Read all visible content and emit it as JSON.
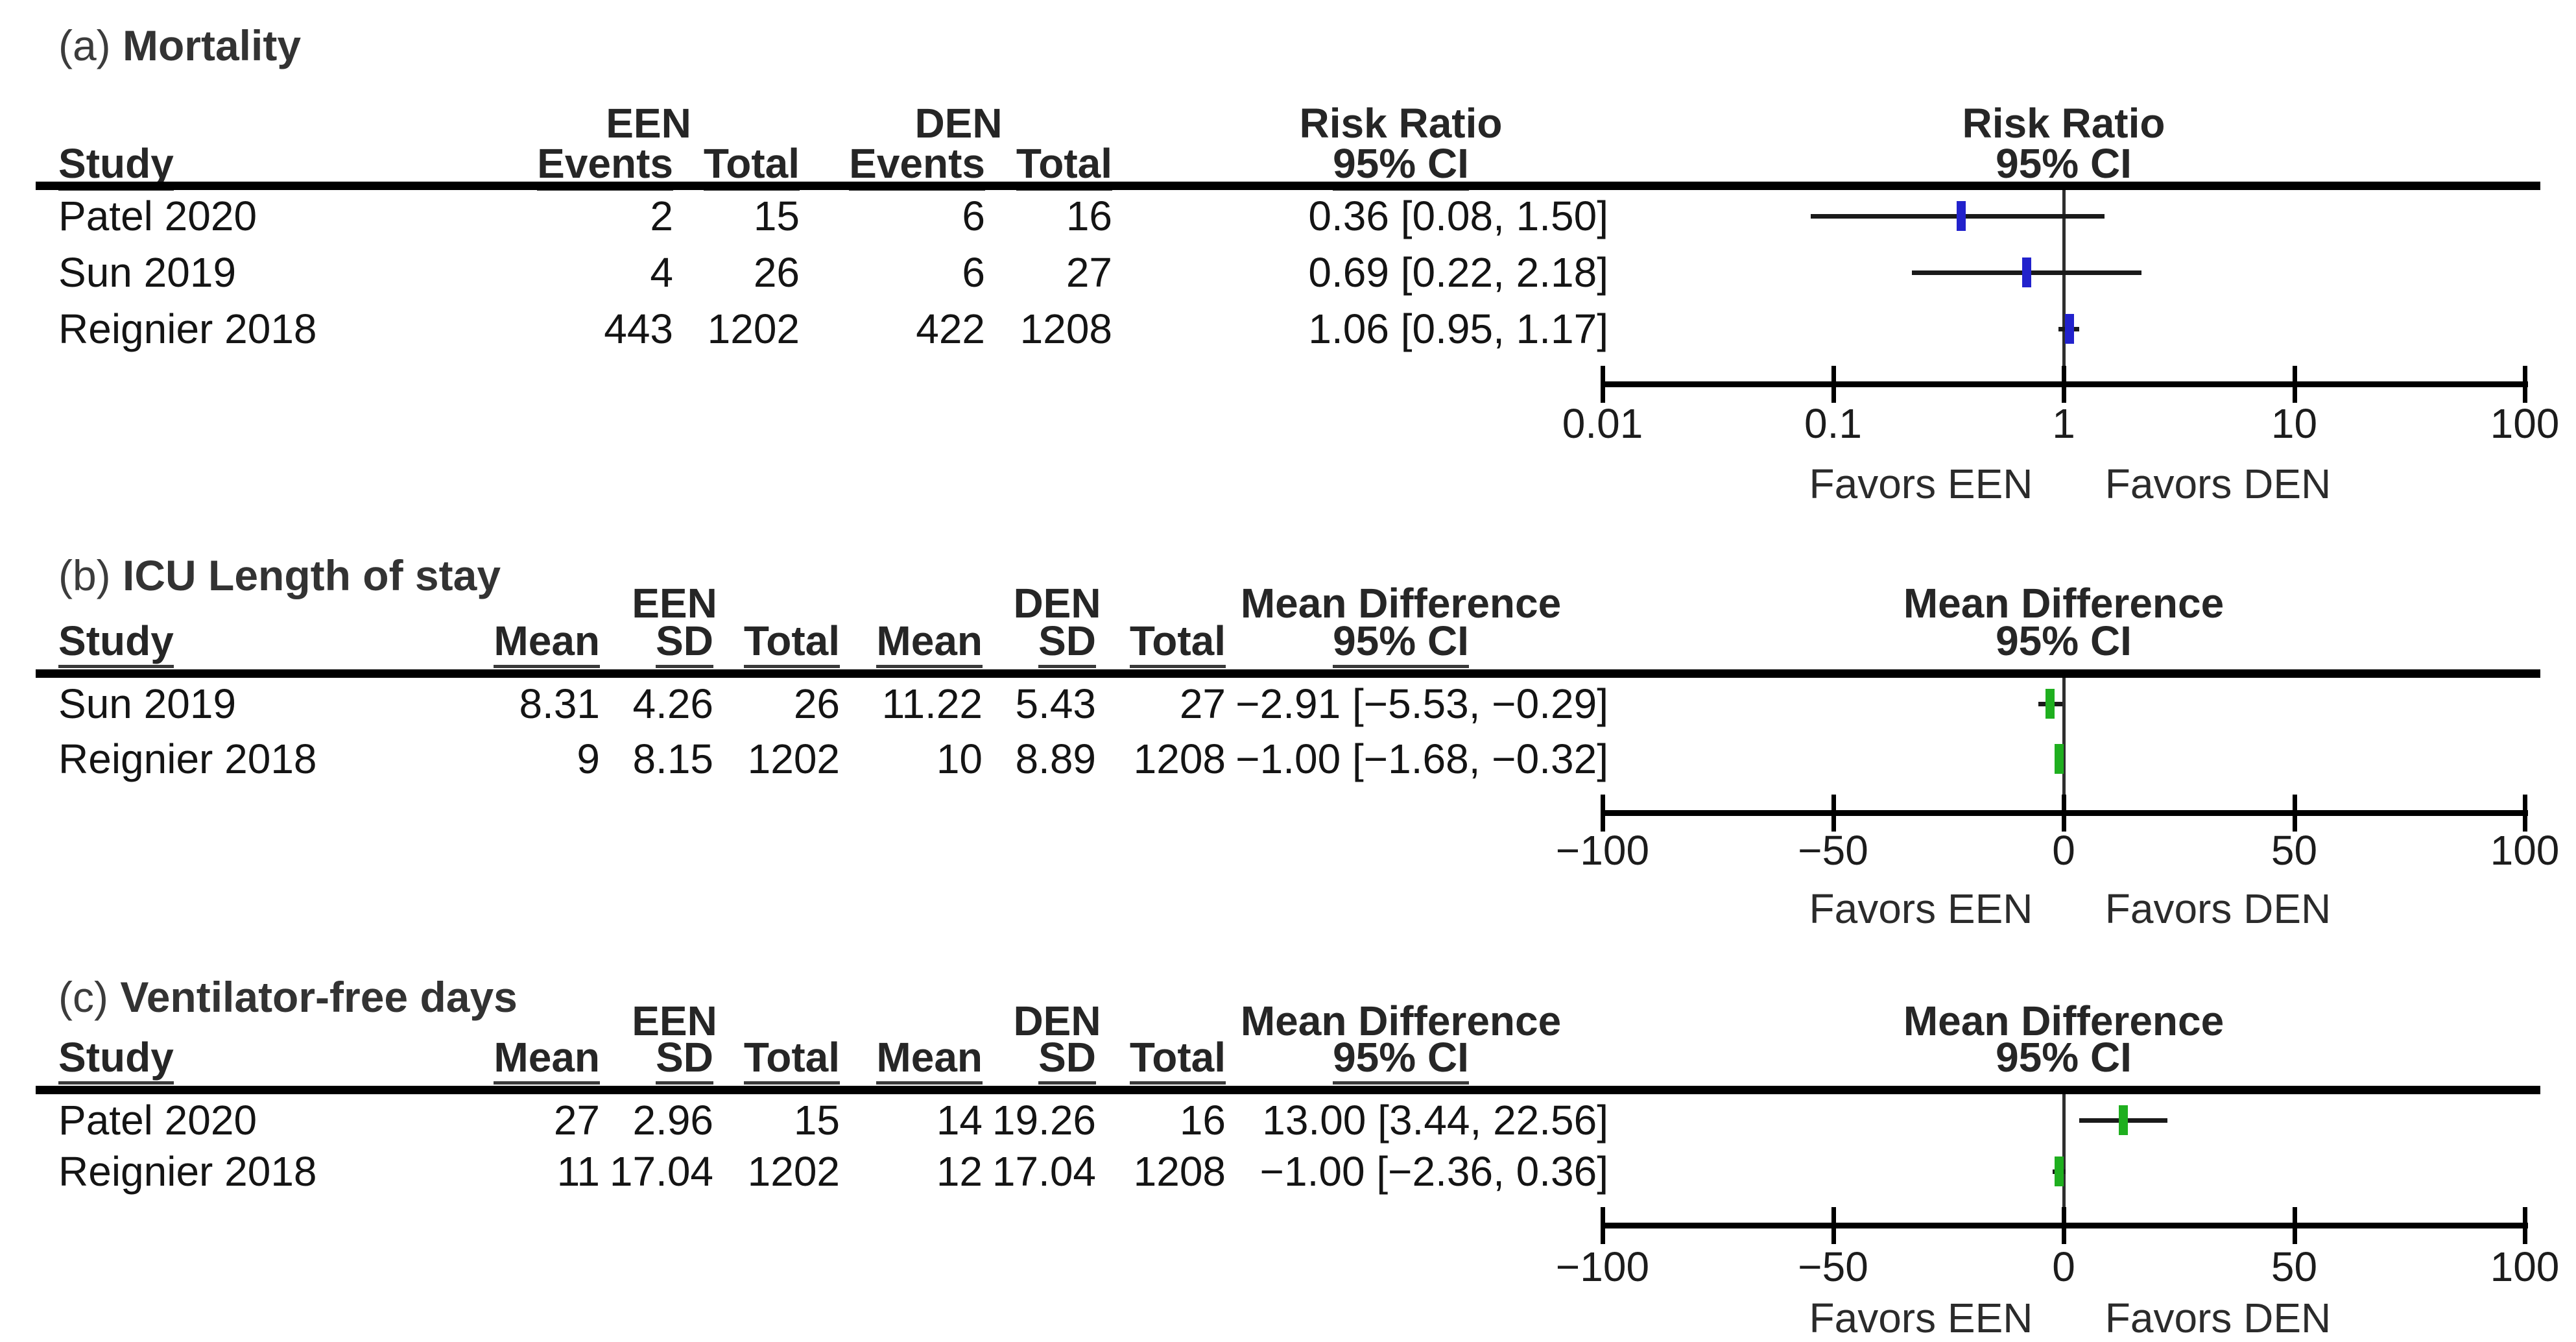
{
  "figure": {
    "sections": [
      {
        "tag": "(a)",
        "title": "Mortality",
        "study_header": "Study",
        "group1": "EEN",
        "group2": "DEN",
        "group_cols": [
          "Events",
          "Total"
        ],
        "effect_label": "Risk Ratio",
        "ci_label": "95% CI",
        "marker_color": "#2222CC",
        "axis": {
          "scale": "log",
          "ticks": [
            "0.01",
            "0.1",
            "1",
            "10",
            "100"
          ],
          "tick_values": [
            0.01,
            0.1,
            1,
            10,
            100
          ],
          "favors_left": "Favors EEN",
          "favors_right": "Favors DEN"
        },
        "rows": [
          {
            "study": "Patel 2020",
            "g1": [
              "2",
              "15"
            ],
            "g2": [
              "6",
              "16"
            ],
            "ci_text": "0.36 [0.08, 1.50]",
            "est": 0.36,
            "lo": 0.08,
            "hi": 1.5
          },
          {
            "study": "Sun 2019",
            "g1": [
              "4",
              "26"
            ],
            "g2": [
              "6",
              "27"
            ],
            "ci_text": "0.69 [0.22, 2.18]",
            "est": 0.69,
            "lo": 0.22,
            "hi": 2.18
          },
          {
            "study": "Reignier 2018",
            "g1": [
              "443",
              "1202"
            ],
            "g2": [
              "422",
              "1208"
            ],
            "ci_text": "1.06 [0.95, 1.17]",
            "est": 1.06,
            "lo": 0.95,
            "hi": 1.17
          }
        ]
      },
      {
        "tag": "(b)",
        "title": "ICU Length of stay",
        "study_header": "Study",
        "group1": "EEN",
        "group2": "DEN",
        "group_cols": [
          "Mean",
          "SD",
          "Total"
        ],
        "effect_label": "Mean Difference",
        "ci_label": "95% CI",
        "marker_color": "#1FAF1F",
        "axis": {
          "scale": "linear",
          "ticks": [
            "−100",
            "−50",
            "0",
            "50",
            "100"
          ],
          "tick_values": [
            -100,
            -50,
            0,
            50,
            100
          ],
          "favors_left": "Favors EEN",
          "favors_right": "Favors DEN"
        },
        "rows": [
          {
            "study": "Sun 2019",
            "g1": [
              "8.31",
              "4.26",
              "26"
            ],
            "g2": [
              "11.22",
              "5.43",
              "27"
            ],
            "ci_text": "−2.91 [−5.53, −0.29]",
            "est": -2.91,
            "lo": -5.53,
            "hi": -0.29
          },
          {
            "study": "Reignier 2018",
            "g1": [
              "9",
              "8.15",
              "1202"
            ],
            "g2": [
              "10",
              "8.89",
              "1208"
            ],
            "ci_text": "−1.00 [−1.68, −0.32]",
            "est": -1.0,
            "lo": -1.68,
            "hi": -0.32
          }
        ]
      },
      {
        "tag": "(c)",
        "title": "Ventilator-free days",
        "study_header": "Study",
        "group1": "EEN",
        "group2": "DEN",
        "group_cols": [
          "Mean",
          "SD",
          "Total"
        ],
        "effect_label": "Mean Difference",
        "ci_label": "95% CI",
        "marker_color": "#1FAF1F",
        "axis": {
          "scale": "linear",
          "ticks": [
            "−100",
            "−50",
            "0",
            "50",
            "100"
          ],
          "tick_values": [
            -100,
            -50,
            0,
            50,
            100
          ],
          "favors_left": "Favors EEN",
          "favors_right": "Favors DEN"
        },
        "rows": [
          {
            "study": "Patel 2020",
            "g1": [
              "27",
              "2.96",
              "15"
            ],
            "g2": [
              "14",
              "19.26",
              "16"
            ],
            "ci_text": "13.00 [3.44, 22.56]",
            "est": 13.0,
            "lo": 3.44,
            "hi": 22.56
          },
          {
            "study": "Reignier 2018",
            "g1": [
              "11",
              "17.04",
              "1202"
            ],
            "g2": [
              "12",
              "17.04",
              "1208"
            ],
            "ci_text": "−1.00 [−2.36, 0.36]",
            "est": -1.0,
            "lo": -2.36,
            "hi": 0.36
          }
        ]
      }
    ]
  },
  "chart_data": [
    {
      "type": "forest",
      "panel": "(a)",
      "title": "Mortality",
      "effect_measure": "Risk Ratio",
      "ci_level": "95% CI",
      "x_scale": "log",
      "x_ticks": [
        0.01,
        0.1,
        1,
        10,
        100
      ],
      "reference_line": 1,
      "favors_left": "Favors EEN",
      "favors_right": "Favors DEN",
      "studies": [
        {
          "study": "Patel 2020",
          "een_events": 2,
          "een_total": 15,
          "den_events": 6,
          "den_total": 16,
          "estimate": 0.36,
          "ci_low": 0.08,
          "ci_high": 1.5
        },
        {
          "study": "Sun 2019",
          "een_events": 4,
          "een_total": 26,
          "den_events": 6,
          "den_total": 27,
          "estimate": 0.69,
          "ci_low": 0.22,
          "ci_high": 2.18
        },
        {
          "study": "Reignier 2018",
          "een_events": 443,
          "een_total": 1202,
          "den_events": 422,
          "den_total": 1208,
          "estimate": 1.06,
          "ci_low": 0.95,
          "ci_high": 1.17
        }
      ]
    },
    {
      "type": "forest",
      "panel": "(b)",
      "title": "ICU Length of stay",
      "effect_measure": "Mean Difference",
      "ci_level": "95% CI",
      "x_scale": "linear",
      "x_ticks": [
        -100,
        -50,
        0,
        50,
        100
      ],
      "reference_line": 0,
      "favors_left": "Favors EEN",
      "favors_right": "Favors DEN",
      "studies": [
        {
          "study": "Sun 2019",
          "een_mean": 8.31,
          "een_sd": 4.26,
          "een_total": 26,
          "den_mean": 11.22,
          "den_sd": 5.43,
          "den_total": 27,
          "estimate": -2.91,
          "ci_low": -5.53,
          "ci_high": -0.29
        },
        {
          "study": "Reignier 2018",
          "een_mean": 9,
          "een_sd": 8.15,
          "een_total": 1202,
          "den_mean": 10,
          "den_sd": 8.89,
          "den_total": 1208,
          "estimate": -1.0,
          "ci_low": -1.68,
          "ci_high": -0.32
        }
      ]
    },
    {
      "type": "forest",
      "panel": "(c)",
      "title": "Ventilator-free days",
      "effect_measure": "Mean Difference",
      "ci_level": "95% CI",
      "x_scale": "linear",
      "x_ticks": [
        -100,
        -50,
        0,
        50,
        100
      ],
      "reference_line": 0,
      "favors_left": "Favors EEN",
      "favors_right": "Favors DEN",
      "studies": [
        {
          "study": "Patel 2020",
          "een_mean": 27,
          "een_sd": 2.96,
          "een_total": 15,
          "den_mean": 14,
          "den_sd": 19.26,
          "den_total": 16,
          "estimate": 13.0,
          "ci_low": 3.44,
          "ci_high": 22.56
        },
        {
          "study": "Reignier 2018",
          "een_mean": 11,
          "een_sd": 17.04,
          "een_total": 1202,
          "den_mean": 12,
          "den_sd": 17.04,
          "den_total": 1208,
          "estimate": -1.0,
          "ci_low": -2.36,
          "ci_high": 0.36
        }
      ]
    }
  ]
}
